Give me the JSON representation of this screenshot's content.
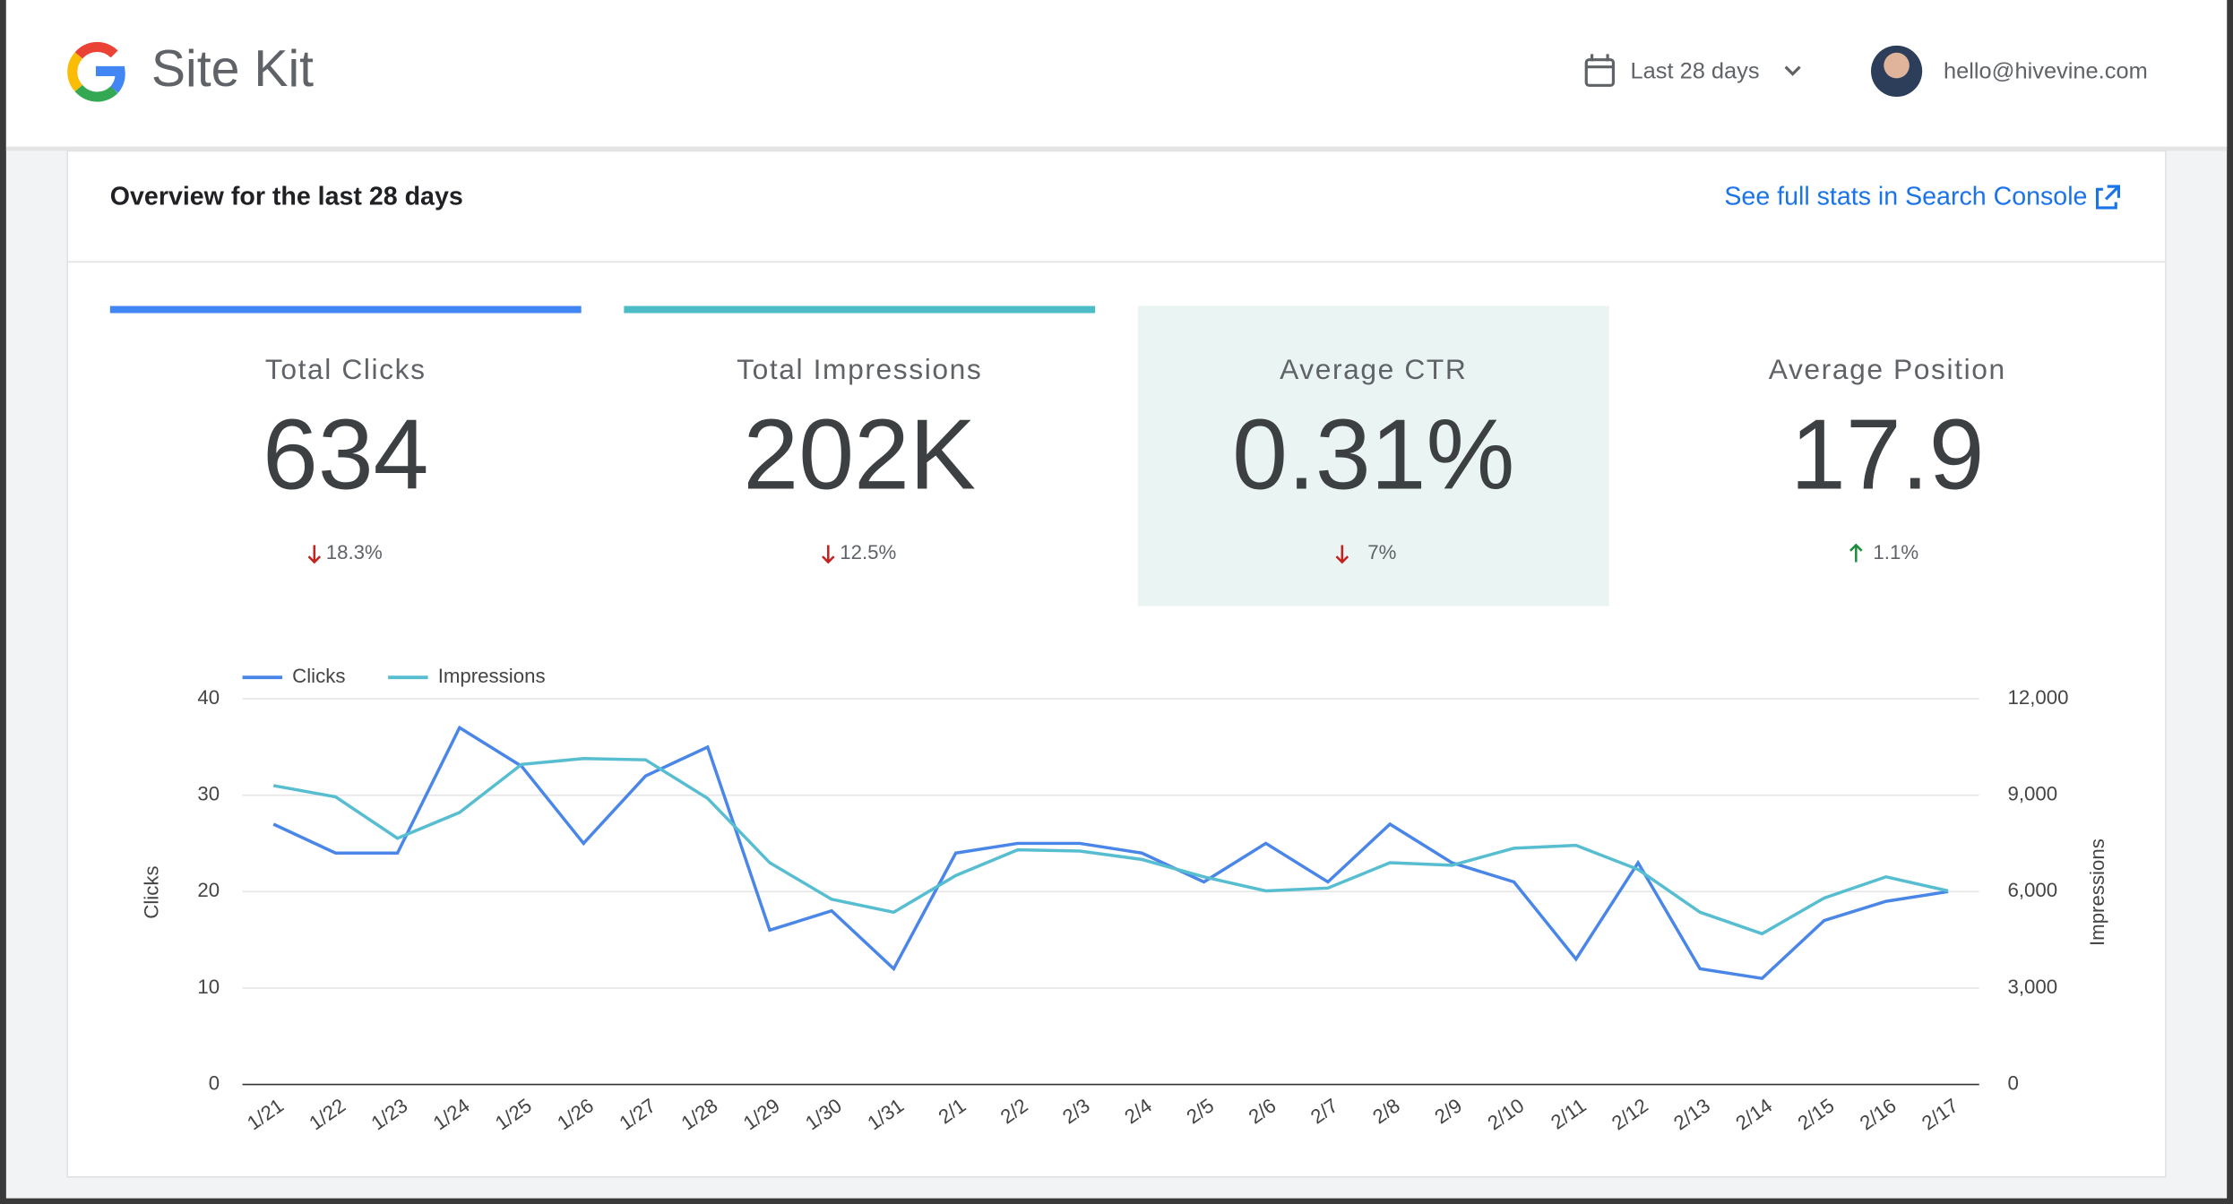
{
  "header": {
    "brand": "Site Kit",
    "date_range": "Last 28 days",
    "account": "hello@hivevine.com"
  },
  "overview": {
    "title": "Overview for the last 28 days",
    "link": "See full stats in Search Console"
  },
  "metrics": [
    {
      "title": "Total Clicks",
      "value": "634",
      "change": "18.3%",
      "direction": "down",
      "bar_color": "#4285f4"
    },
    {
      "title": "Total Impressions",
      "value": "202K",
      "change": "12.5%",
      "direction": "down",
      "bar_color": "#4cbcc6"
    },
    {
      "title": "Average CTR",
      "value": "0.31%",
      "change": "7%",
      "direction": "down",
      "selected": true
    },
    {
      "title": "Average Position",
      "value": "17.9",
      "change": "1.1%",
      "direction": "up"
    }
  ],
  "chart_data": {
    "type": "line",
    "categories": [
      "1/21",
      "1/22",
      "1/23",
      "1/24",
      "1/25",
      "1/26",
      "1/27",
      "1/28",
      "1/29",
      "1/30",
      "1/31",
      "2/1",
      "2/2",
      "2/3",
      "2/4",
      "2/5",
      "2/6",
      "2/7",
      "2/8",
      "2/9",
      "2/10",
      "2/11",
      "2/12",
      "2/13",
      "2/14",
      "2/15",
      "2/16",
      "2/17"
    ],
    "series": [
      {
        "name": "Clicks",
        "color": "#4a86e8",
        "values": [
          27,
          24,
          24,
          37,
          33,
          25,
          32,
          35,
          16,
          18,
          12,
          24,
          25,
          25,
          24,
          21,
          25,
          21,
          27,
          23,
          21,
          13,
          23,
          12,
          11,
          17,
          19,
          20
        ]
      },
      {
        "name": "Impressions",
        "color": "#57bdd0",
        "axis": "y2",
        "values": [
          9300,
          8950,
          7660,
          8460,
          9960,
          10140,
          10100,
          8900,
          6900,
          5760,
          5360,
          6500,
          7300,
          7260,
          7000,
          6460,
          6020,
          6110,
          6900,
          6820,
          7350,
          7440,
          6690,
          5360,
          4690,
          5800,
          6460,
          6020
        ]
      }
    ],
    "ylabel": "Clicks",
    "y2label": "Impressions",
    "ylim": [
      0,
      40
    ],
    "yticks": [
      0,
      10,
      20,
      30,
      40
    ],
    "y2lim": [
      0,
      12000
    ],
    "y2ticks": [
      0,
      {
        "value": 3000,
        "label": "3,000"
      },
      {
        "value": 6000,
        "label": "6,000"
      },
      {
        "value": 9000,
        "label": "9,000"
      },
      {
        "value": 12000,
        "label": "12,000"
      }
    ],
    "grid": true,
    "legend": "top-left"
  }
}
